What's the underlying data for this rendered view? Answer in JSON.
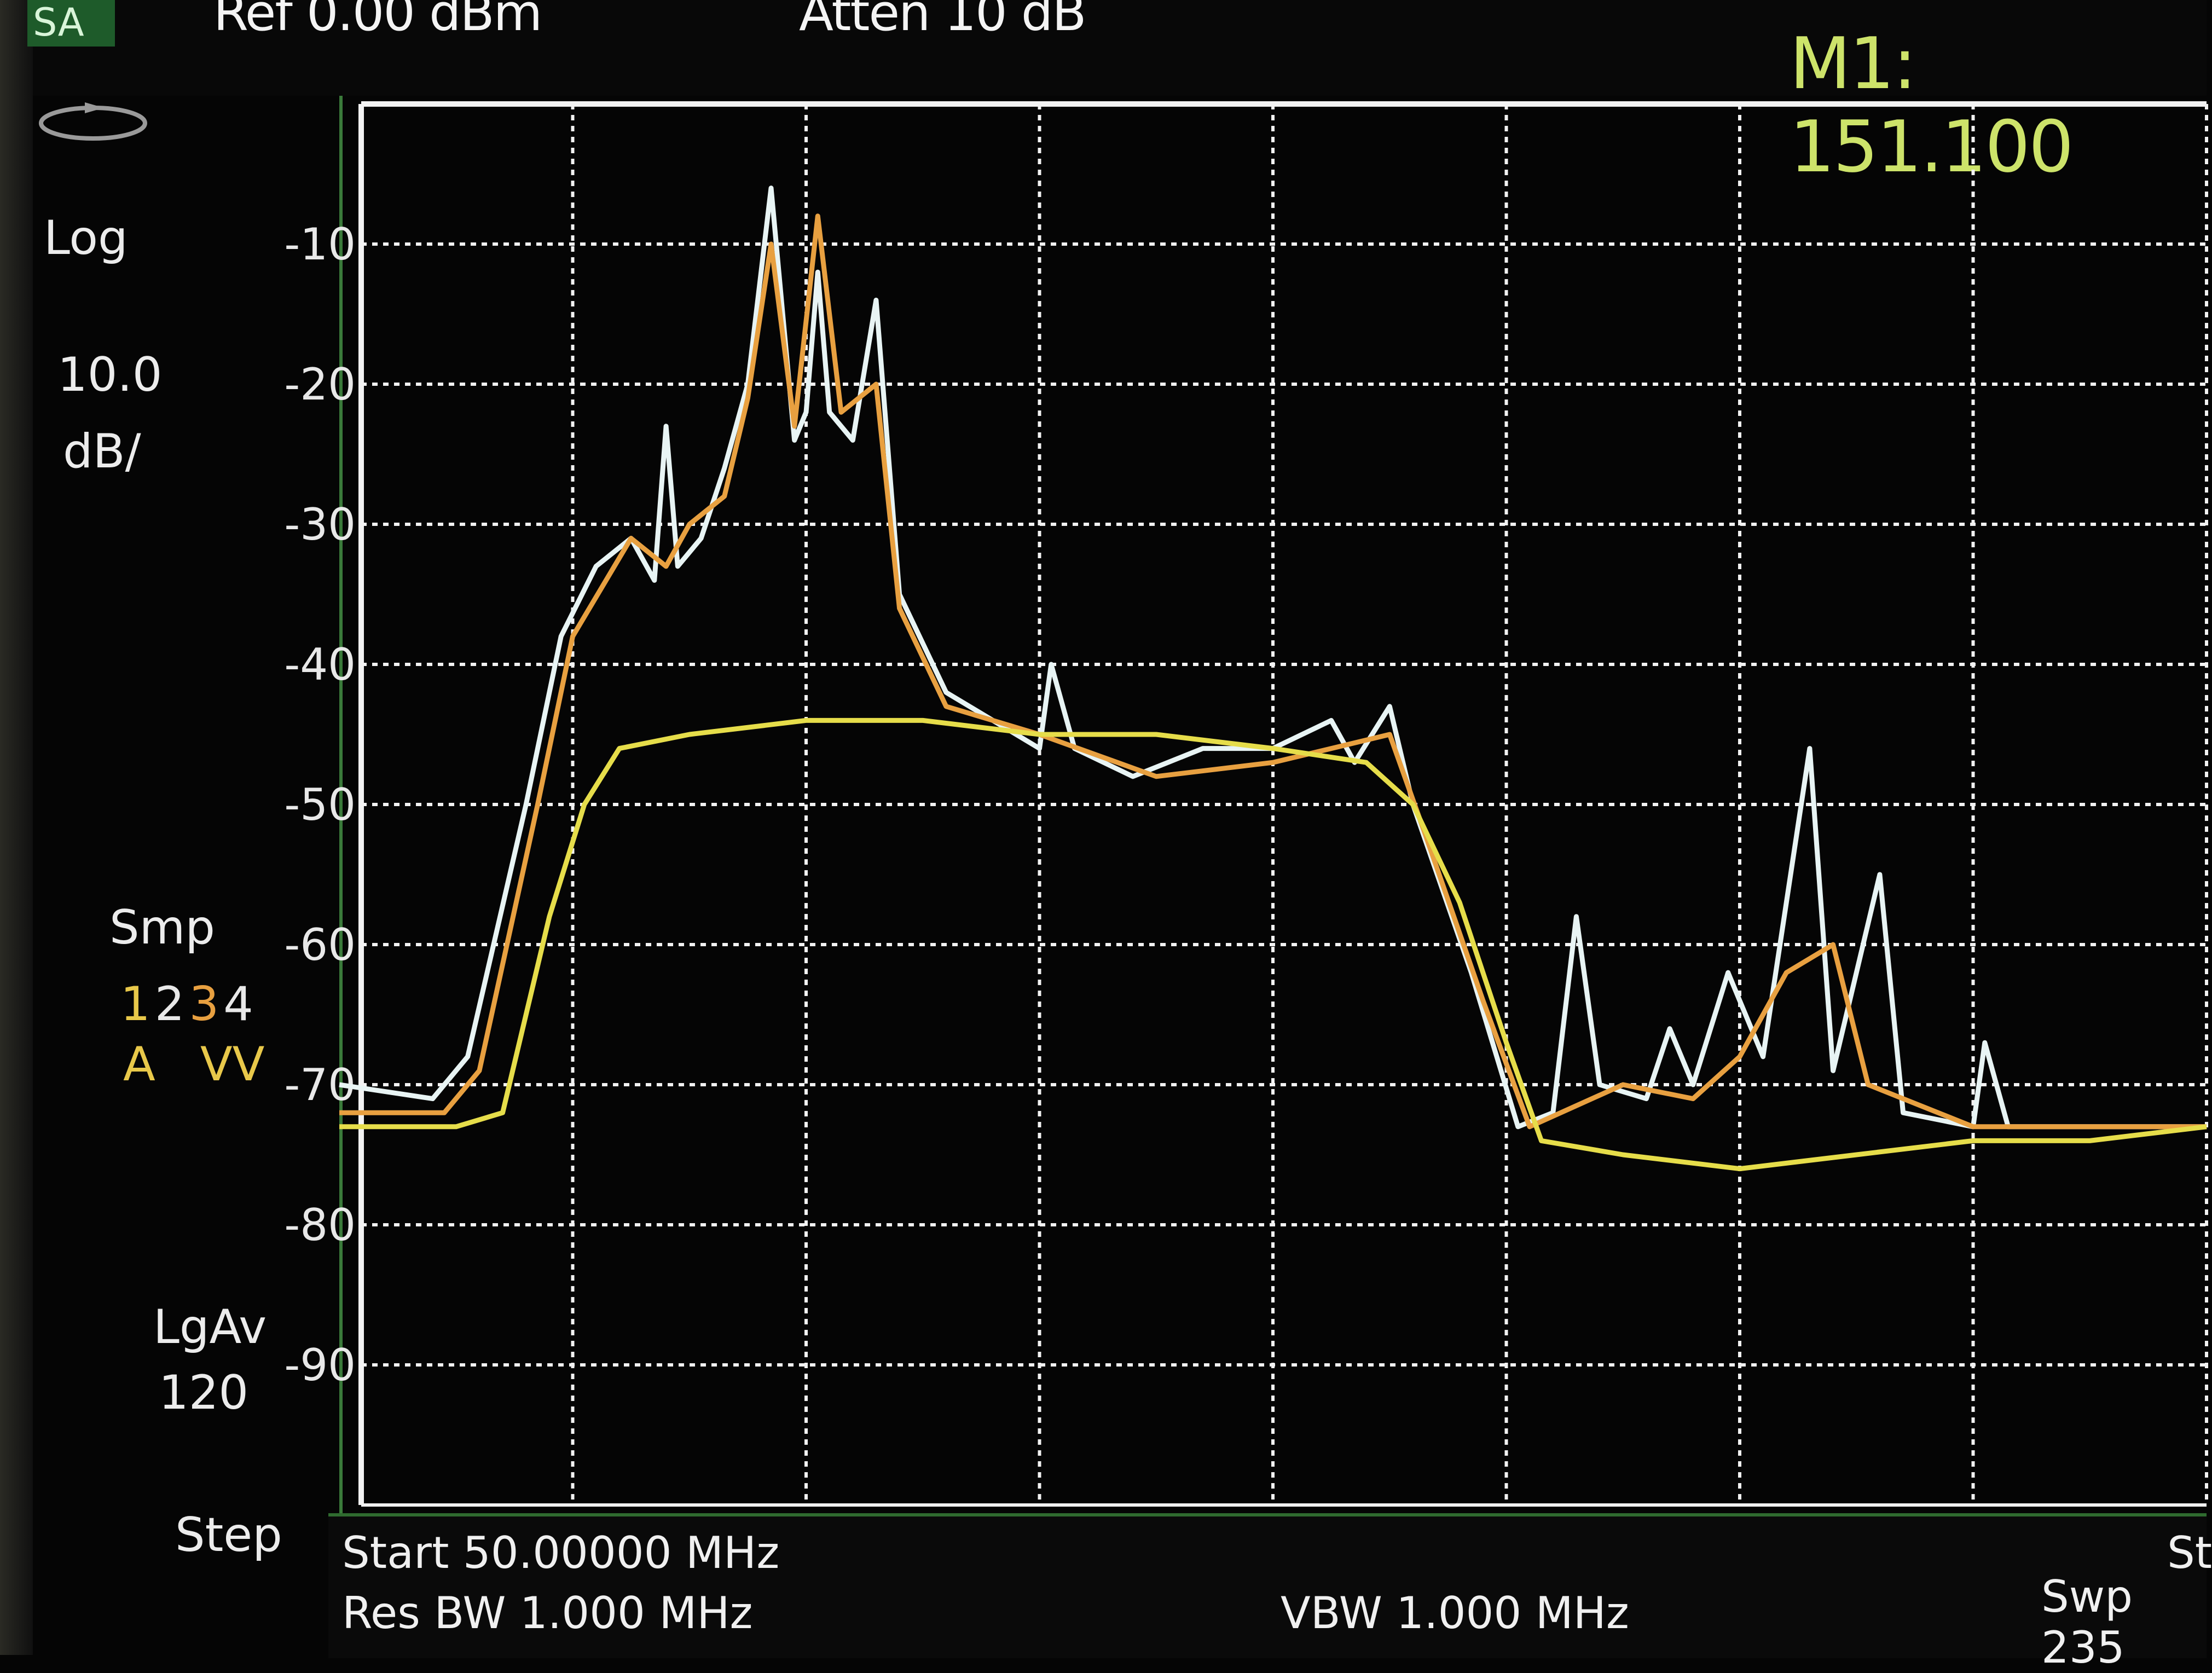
{
  "header": {
    "mode": "SA",
    "ref_level": "Ref 0.00 dBm",
    "atten": "Atten 10 dB",
    "marker": "M1:  151.100"
  },
  "side_panel": {
    "scale_type": "Log",
    "scale_value": "10.0",
    "scale_unit": "dB/",
    "detector": "Smp",
    "trace_numbers": [
      "1",
      "2",
      "3",
      "4"
    ],
    "trace_modes": "A   VV",
    "avg_label": "LgAv",
    "avg_count": "120",
    "step_label": "Step"
  },
  "footer": {
    "start": "Start 50.00000 MHz",
    "res_bw": "Res BW 1.000 MHz",
    "vbw": "VBW 1.000 MHz",
    "swp": "Swp 235",
    "right_edge": "St"
  },
  "colors": {
    "grid": "#f2f2f2",
    "trace_yellow": "#e6dd4a",
    "trace_white": "#e8f4f4",
    "trace_orange": "#e8a040",
    "marker": "#cde36a",
    "highlight_num": "#e8c84a"
  },
  "chart_data": {
    "type": "line",
    "yticks": [
      "-10",
      "-20",
      "-30",
      "-40",
      "-50",
      "-60",
      "-70",
      "-80",
      "-90"
    ],
    "ylim": [
      -100,
      0
    ],
    "xlim": [
      0,
      8
    ],
    "grid": true,
    "series": [
      {
        "color": "#e8f4f4",
        "points": [
          [
            0,
            -70
          ],
          [
            0.4,
            -71
          ],
          [
            0.55,
            -68
          ],
          [
            0.8,
            -50
          ],
          [
            0.95,
            -38
          ],
          [
            1.1,
            -33
          ],
          [
            1.25,
            -31
          ],
          [
            1.35,
            -34
          ],
          [
            1.4,
            -23
          ],
          [
            1.45,
            -33
          ],
          [
            1.55,
            -31
          ],
          [
            1.65,
            -26
          ],
          [
            1.75,
            -20
          ],
          [
            1.85,
            -6
          ],
          [
            1.9,
            -15
          ],
          [
            1.95,
            -24
          ],
          [
            2.0,
            -22
          ],
          [
            2.05,
            -12
          ],
          [
            2.1,
            -22
          ],
          [
            2.2,
            -24
          ],
          [
            2.3,
            -14
          ],
          [
            2.4,
            -35
          ],
          [
            2.6,
            -42
          ],
          [
            2.8,
            -44
          ],
          [
            3.0,
            -46
          ],
          [
            3.05,
            -40
          ],
          [
            3.15,
            -46
          ],
          [
            3.4,
            -48
          ],
          [
            3.7,
            -46
          ],
          [
            4.0,
            -46
          ],
          [
            4.25,
            -44
          ],
          [
            4.35,
            -47
          ],
          [
            4.5,
            -43
          ],
          [
            4.6,
            -50
          ],
          [
            4.85,
            -62
          ],
          [
            5.05,
            -73
          ],
          [
            5.2,
            -72
          ],
          [
            5.3,
            -58
          ],
          [
            5.4,
            -70
          ],
          [
            5.6,
            -71
          ],
          [
            5.7,
            -66
          ],
          [
            5.8,
            -70
          ],
          [
            5.95,
            -62
          ],
          [
            6.1,
            -68
          ],
          [
            6.3,
            -46
          ],
          [
            6.4,
            -69
          ],
          [
            6.6,
            -55
          ],
          [
            6.7,
            -72
          ],
          [
            7.0,
            -73
          ],
          [
            7.05,
            -67
          ],
          [
            7.15,
            -73
          ],
          [
            8.0,
            -73
          ]
        ]
      },
      {
        "color": "#e8a040",
        "points": [
          [
            0,
            -72
          ],
          [
            0.45,
            -72
          ],
          [
            0.6,
            -69
          ],
          [
            0.85,
            -50
          ],
          [
            1.0,
            -38
          ],
          [
            1.25,
            -31
          ],
          [
            1.4,
            -33
          ],
          [
            1.5,
            -30
          ],
          [
            1.65,
            -28
          ],
          [
            1.75,
            -21
          ],
          [
            1.85,
            -10
          ],
          [
            1.95,
            -23
          ],
          [
            2.05,
            -8
          ],
          [
            2.15,
            -22
          ],
          [
            2.3,
            -20
          ],
          [
            2.4,
            -36
          ],
          [
            2.6,
            -43
          ],
          [
            3.0,
            -45
          ],
          [
            3.5,
            -48
          ],
          [
            4.0,
            -47
          ],
          [
            4.5,
            -45
          ],
          [
            4.65,
            -52
          ],
          [
            4.9,
            -64
          ],
          [
            5.1,
            -73
          ],
          [
            5.5,
            -70
          ],
          [
            5.8,
            -71
          ],
          [
            6.0,
            -68
          ],
          [
            6.2,
            -62
          ],
          [
            6.4,
            -60
          ],
          [
            6.55,
            -70
          ],
          [
            7.0,
            -73
          ],
          [
            8.0,
            -73
          ]
        ]
      },
      {
        "color": "#e6dd4a",
        "points": [
          [
            0,
            -73
          ],
          [
            0.5,
            -73
          ],
          [
            0.7,
            -72
          ],
          [
            0.9,
            -58
          ],
          [
            1.05,
            -50
          ],
          [
            1.2,
            -46
          ],
          [
            1.5,
            -45
          ],
          [
            2.0,
            -44
          ],
          [
            2.5,
            -44
          ],
          [
            3.0,
            -45
          ],
          [
            3.5,
            -45
          ],
          [
            4.0,
            -46
          ],
          [
            4.4,
            -47
          ],
          [
            4.6,
            -50
          ],
          [
            4.8,
            -57
          ],
          [
            5.0,
            -67
          ],
          [
            5.15,
            -74
          ],
          [
            5.5,
            -75
          ],
          [
            6.0,
            -76
          ],
          [
            6.5,
            -75
          ],
          [
            7.0,
            -74
          ],
          [
            7.5,
            -74
          ],
          [
            8.0,
            -73
          ]
        ]
      }
    ]
  }
}
